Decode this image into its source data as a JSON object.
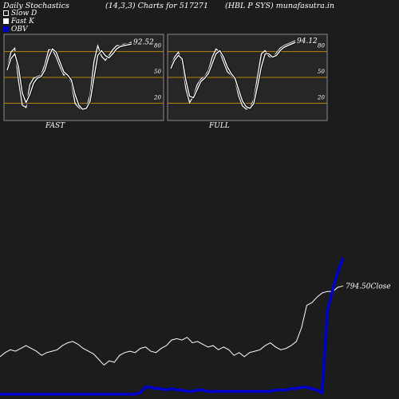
{
  "header": {
    "left": "Daily Stochastics",
    "center": "(14,3,3) Charts for 517271",
    "right": "(HBL P SYS) munafasutra.in"
  },
  "legend": {
    "slow_d": "Slow  D",
    "fast_k": "Fast K",
    "obv": "OBV"
  },
  "colors": {
    "background": "#1c1c1c",
    "panel_bg": "#262626",
    "level_line": "#b8860b",
    "stoch_line": "#ffffff",
    "price_line": "#ffffff",
    "obv_line": "#0000cc"
  },
  "chart_data": [
    {
      "type": "line",
      "title": "FAST",
      "ylim": [
        0,
        100
      ],
      "yticks": [
        "20",
        "50",
        "80"
      ],
      "level_lines": [
        20,
        50,
        80
      ],
      "last_value_label": "92.52",
      "series": [
        {
          "name": "Fast K",
          "values": [
            60,
            80,
            85,
            45,
            15,
            12,
            40,
            48,
            50,
            52,
            65,
            83,
            83,
            74,
            62,
            52,
            53,
            42,
            17,
            12,
            9,
            12,
            28,
            68,
            88,
            75,
            70,
            76,
            83,
            88,
            88,
            90,
            90,
            92.52
          ]
        },
        {
          "name": "Slow D",
          "values": [
            58,
            72,
            78,
            62,
            30,
            18,
            28,
            42,
            48,
            50,
            58,
            74,
            84,
            80,
            68,
            56,
            52,
            46,
            28,
            15,
            10,
            11,
            20,
            48,
            76,
            82,
            76,
            73,
            78,
            84,
            87,
            88,
            89,
            90
          ]
        }
      ]
    },
    {
      "type": "line",
      "title": "FULL",
      "ylim": [
        0,
        100
      ],
      "yticks": [
        "20",
        "50",
        "80"
      ],
      "level_lines": [
        20,
        50,
        80
      ],
      "last_value_label": "94.12",
      "series": [
        {
          "name": "Fast K",
          "values": [
            62,
            74,
            80,
            68,
            35,
            18,
            26,
            40,
            47,
            50,
            58,
            74,
            84,
            80,
            68,
            56,
            52,
            46,
            26,
            14,
            10,
            12,
            22,
            50,
            78,
            82,
            75,
            73,
            79,
            85,
            88,
            90,
            92,
            94.12
          ]
        },
        {
          "name": "Slow D",
          "values": [
            60,
            70,
            76,
            72,
            46,
            26,
            24,
            34,
            44,
            48,
            54,
            66,
            78,
            82,
            74,
            62,
            54,
            48,
            34,
            20,
            13,
            11,
            17,
            38,
            62,
            78,
            78,
            74,
            76,
            82,
            86,
            88,
            90,
            92
          ]
        }
      ]
    },
    {
      "type": "line",
      "last_value_label": "794.50Close",
      "ylim": [
        0,
        100
      ],
      "series": [
        {
          "name": "Close",
          "values": [
            27,
            30,
            32,
            31,
            33,
            35,
            33,
            31,
            28,
            30,
            31,
            32,
            35,
            37,
            38,
            36,
            33,
            31,
            29,
            25,
            21,
            24,
            23,
            28,
            30,
            31,
            30,
            33,
            34,
            31,
            30,
            33,
            35,
            39,
            40,
            39,
            41,
            37,
            38,
            36,
            34,
            35,
            32,
            34,
            32,
            28,
            30,
            27,
            30,
            31,
            32,
            35,
            37,
            34,
            32,
            33,
            35,
            38,
            48,
            64,
            66,
            70,
            73,
            74,
            74,
            77,
            78
          ]
        },
        {
          "name": "OBV",
          "values": [
            0,
            0,
            0,
            0,
            0,
            0,
            0,
            0,
            0,
            0,
            0,
            0,
            0,
            0,
            0,
            0,
            0,
            0,
            0,
            0,
            0,
            0,
            0,
            0,
            0,
            0,
            0,
            1,
            5,
            5,
            4,
            4,
            3,
            4,
            3,
            3,
            2,
            2,
            3,
            3,
            2,
            2,
            2,
            2,
            2,
            2,
            2,
            2,
            2,
            2,
            2,
            2,
            2,
            3,
            3,
            3,
            4,
            4,
            5,
            5,
            4,
            3,
            1,
            60,
            75,
            88,
            98
          ]
        }
      ]
    }
  ]
}
